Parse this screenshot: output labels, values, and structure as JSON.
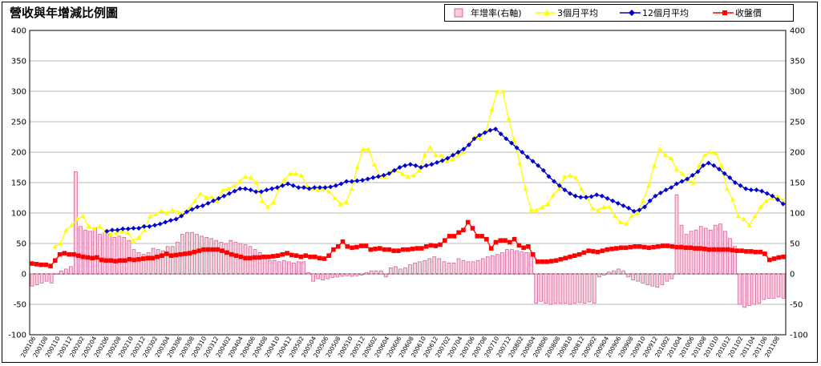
{
  "chart_data": {
    "type": "bar+line",
    "title": "營收與年增減比例圖",
    "y_left": {
      "ticks": [
        "400",
        "350",
        "300",
        "250",
        "200",
        "150",
        "100",
        "50",
        "0",
        "-50",
        "-100"
      ],
      "ylim": [
        -100,
        400
      ]
    },
    "y_right": {
      "ticks": [
        "400",
        "350",
        "300",
        "250",
        "200",
        "150",
        "100",
        "50",
        "0",
        "-50",
        "-100"
      ],
      "ylim": [
        -100,
        400
      ]
    },
    "x_tick_labels": [
      "200106",
      "200108",
      "200110",
      "200112",
      "200202",
      "200204",
      "200206",
      "200208",
      "200210",
      "200212",
      "200302",
      "200304",
      "200306",
      "200308",
      "200310",
      "200312",
      "200402",
      "200404",
      "200406",
      "200408",
      "200410",
      "200412",
      "200502",
      "200504",
      "200506",
      "200508",
      "200510",
      "200512",
      "200602",
      "200604",
      "200606",
      "200608",
      "200610",
      "200612",
      "200702",
      "200704",
      "200706",
      "200708",
      "200710",
      "200712",
      "200802",
      "200804",
      "200806",
      "200808",
      "200810",
      "200812",
      "200902",
      "200904",
      "200906",
      "200908",
      "200910",
      "200912",
      "201002",
      "201004",
      "201006",
      "201008",
      "201010",
      "201012",
      "201102",
      "201104",
      "201106",
      "201108"
    ],
    "legend": [
      "年增率(右軸)",
      "3個月平均",
      "12個月平均",
      "收盤價"
    ],
    "colors": {
      "yoy": "#cc6699",
      "yoy_fill": "#ffccdd",
      "avg3": "#ffff00",
      "avg12": "#0000cc",
      "price": "#ff0000"
    },
    "series": [
      {
        "name": "年增率(右軸)",
        "type": "bar",
        "values": [
          -20,
          -18,
          -15,
          -12,
          -15,
          0,
          5,
          8,
          12,
          168,
          78,
          72,
          70,
          75,
          65,
          68,
          65,
          60,
          62,
          60,
          55,
          40,
          35,
          32,
          35,
          42,
          40,
          38,
          45,
          45,
          52,
          65,
          68,
          68,
          65,
          62,
          60,
          58,
          55,
          52,
          50,
          55,
          52,
          50,
          48,
          45,
          40,
          35,
          25,
          22,
          22,
          20,
          22,
          20,
          18,
          20,
          20,
          2,
          -12,
          -8,
          -10,
          -8,
          -6,
          -5,
          -4,
          -3,
          -4,
          -3,
          -2,
          2,
          5,
          5,
          5,
          -5,
          10,
          12,
          8,
          10,
          15,
          18,
          20,
          22,
          25,
          28,
          25,
          20,
          18,
          18,
          25,
          22,
          20,
          20,
          22,
          25,
          28,
          30,
          32,
          35,
          40,
          40,
          38,
          36,
          35,
          35,
          -48,
          -45,
          -48,
          -50,
          -48,
          -48,
          -48,
          -50,
          -48,
          -47,
          -48,
          -46,
          -48,
          -5,
          -2,
          3,
          5,
          8,
          5,
          -5,
          -10,
          -12,
          -15,
          -18,
          -20,
          -22,
          -18,
          -12,
          -8,
          130,
          80,
          65,
          70,
          72,
          78,
          75,
          72,
          80,
          82,
          70,
          58,
          45,
          -50,
          -55,
          -52,
          -50,
          -48,
          -42,
          -40,
          -40,
          -38,
          -40
        ]
      },
      {
        "name": "3個月平均",
        "type": "line",
        "values": [
          null,
          null,
          null,
          null,
          45,
          50,
          72,
          80,
          90,
          95,
          78,
          75,
          78,
          70,
          65,
          68,
          70,
          68,
          55,
          60,
          72,
          95,
          98,
          104,
          100,
          105,
          102,
          100,
          108,
          120,
          132,
          125,
          127,
          120,
          138,
          140,
          145,
          152,
          160,
          158,
          150,
          120,
          110,
          118,
          140,
          155,
          165,
          165,
          162,
          145,
          140,
          138,
          140,
          135,
          125,
          115,
          118,
          140,
          175,
          205,
          205,
          180,
          160,
          160,
          168,
          170,
          165,
          160,
          162,
          170,
          195,
          208,
          195,
          195,
          185,
          188,
          195,
          200,
          215,
          225,
          222,
          235,
          270,
          300,
          300,
          255,
          220,
          182,
          140,
          105,
          105,
          110,
          115,
          130,
          140,
          160,
          162,
          158,
          140,
          125,
          108,
          105,
          110,
          110,
          95,
          85,
          82,
          95,
          100,
          120,
          145,
          178,
          205,
          195,
          190,
          172,
          165,
          155,
          150,
          178,
          195,
          200,
          198,
          178,
          140,
          122,
          95,
          90,
          80,
          95,
          110,
          120,
          125,
          128,
          120
        ]
      },
      {
        "name": "12個月平均",
        "type": "line",
        "values": [
          null,
          null,
          null,
          null,
          null,
          null,
          null,
          null,
          null,
          null,
          null,
          null,
          null,
          null,
          70,
          72,
          72,
          74,
          74,
          75,
          75,
          78,
          78,
          80,
          82,
          85,
          88,
          90,
          95,
          102,
          106,
          110,
          112,
          116,
          120,
          124,
          128,
          132,
          136,
          140,
          140,
          138,
          135,
          135,
          138,
          140,
          142,
          145,
          148,
          145,
          142,
          142,
          140,
          142,
          142,
          142,
          143,
          145,
          148,
          152,
          152,
          153,
          154,
          156,
          158,
          160,
          162,
          165,
          170,
          175,
          178,
          180,
          178,
          175,
          178,
          180,
          183,
          186,
          190,
          195,
          200,
          205,
          212,
          222,
          228,
          232,
          236,
          238,
          230,
          222,
          215,
          207,
          200,
          192,
          185,
          178,
          170,
          160,
          152,
          145,
          138,
          132,
          128,
          126,
          126,
          127,
          130,
          128,
          124,
          120,
          116,
          112,
          108,
          103,
          105,
          110,
          120,
          128,
          133,
          138,
          142,
          148,
          152,
          156,
          162,
          168,
          178,
          182,
          178,
          172,
          165,
          158,
          150,
          145,
          140,
          138,
          138,
          136,
          132,
          128,
          122,
          115
        ]
      },
      {
        "name": "收盤價",
        "type": "line",
        "values": [
          17,
          16,
          15,
          15,
          13,
          22,
          32,
          34,
          32,
          32,
          30,
          28,
          27,
          26,
          27,
          23,
          22,
          22,
          21,
          22,
          22,
          24,
          23,
          24,
          25,
          26,
          26,
          28,
          30,
          33,
          30,
          31,
          32,
          33,
          34,
          36,
          38,
          40,
          40,
          40,
          40,
          38,
          35,
          32,
          30,
          28,
          26,
          26,
          27,
          27,
          28,
          28,
          29,
          30,
          32,
          34,
          31,
          30,
          28,
          30,
          28,
          28,
          26,
          25,
          30,
          40,
          45,
          53,
          45,
          43,
          44,
          46,
          46,
          40,
          41,
          42,
          40,
          40,
          38,
          38,
          40,
          40,
          41,
          42,
          42,
          45,
          47,
          46,
          48,
          55,
          62,
          62,
          68,
          72,
          85,
          75,
          62,
          62,
          57,
          42,
          52,
          55,
          55,
          52,
          57,
          47,
          43,
          45,
          32,
          20,
          20,
          20,
          21,
          22,
          24,
          26,
          28,
          30,
          32,
          35,
          38,
          37,
          36,
          38,
          40,
          41,
          42,
          43,
          43,
          44,
          45,
          45,
          44,
          43,
          44,
          45,
          46,
          46,
          45,
          44,
          44,
          43,
          43,
          42,
          42,
          41,
          40,
          40,
          40,
          40,
          40,
          39,
          38,
          38,
          37,
          37,
          36,
          36,
          33,
          23,
          25,
          27,
          28
        ]
      }
    ]
  }
}
